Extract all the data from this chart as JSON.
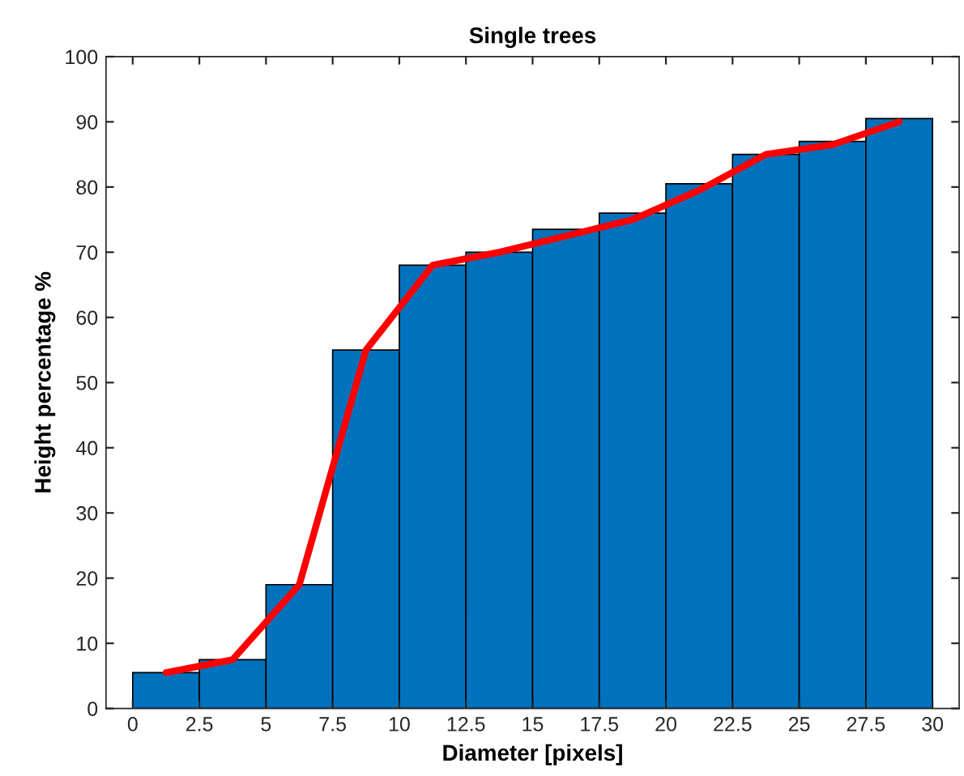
{
  "chart_data": {
    "type": "histogram",
    "title": "Single trees",
    "xlabel": "Diameter [pixels]",
    "ylabel": "Height percentage %",
    "bins": [
      0,
      2.5,
      5,
      7.5,
      10,
      12.5,
      15,
      17.5,
      20,
      22.5,
      25,
      27.5,
      30
    ],
    "values": [
      5.5,
      7.5,
      19,
      55,
      68,
      70,
      73.5,
      76,
      80.5,
      85,
      87,
      90.5
    ],
    "color": "#0072bd",
    "series": [
      {
        "type": "line",
        "color": "#ff0000",
        "x": [
          1.25,
          3.75,
          6.25,
          8.75,
          11.25,
          13.75,
          16.25,
          18.75,
          21.25,
          23.75,
          26.25,
          28.75
        ],
        "values": [
          5.5,
          7.5,
          19,
          55,
          68,
          70,
          72.5,
          75,
          79.5,
          85,
          86.5,
          90
        ]
      }
    ],
    "xlim": [
      -1,
      31
    ],
    "xticks": [
      0,
      2.5,
      5,
      7.5,
      10,
      12.5,
      15,
      17.5,
      20,
      22.5,
      25,
      27.5,
      30
    ],
    "ylim": [
      0,
      100
    ],
    "yticks": [
      0,
      10,
      20,
      30,
      40,
      50,
      60,
      70,
      80,
      90,
      100
    ],
    "grid": false,
    "legend": false
  }
}
